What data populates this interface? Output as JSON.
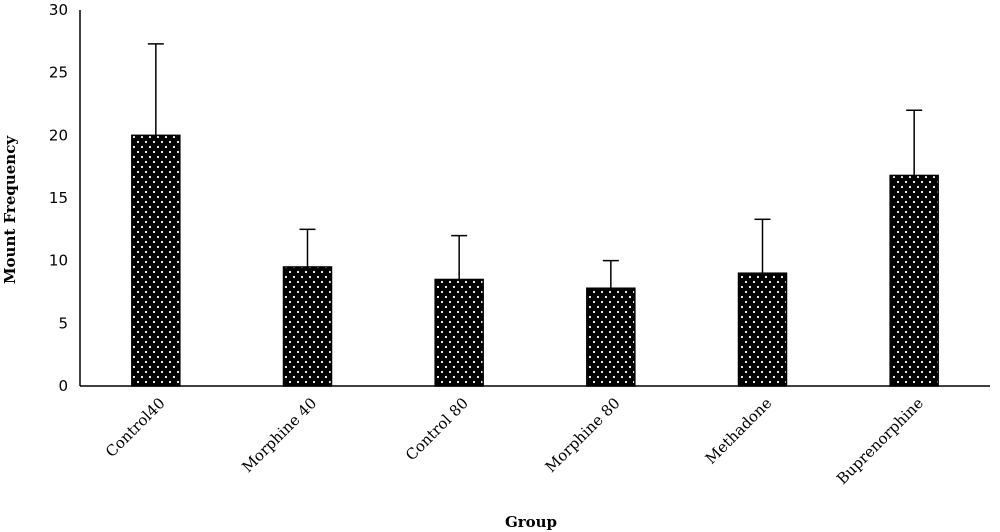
{
  "chart_data": {
    "type": "bar",
    "title": "",
    "xlabel": "Group",
    "ylabel": "Mount Frequency",
    "categories": [
      "Control40",
      "Morphine 40",
      "Control 80",
      "Morphine 80",
      "Methadone",
      "Buprenorphine"
    ],
    "values": [
      20,
      9.5,
      8.5,
      7.8,
      9,
      16.8
    ],
    "error_upper": [
      27.3,
      12.5,
      12,
      10,
      13.3,
      22
    ],
    "ylim": [
      0,
      30
    ],
    "yticks": [
      0,
      5,
      10,
      15,
      20,
      25,
      30
    ],
    "grid": false,
    "legend": "none",
    "bar_fill": "black with white dot pattern",
    "colors": {
      "bar": "#000000",
      "dot": "#ffffff",
      "axis": "#000000"
    }
  }
}
